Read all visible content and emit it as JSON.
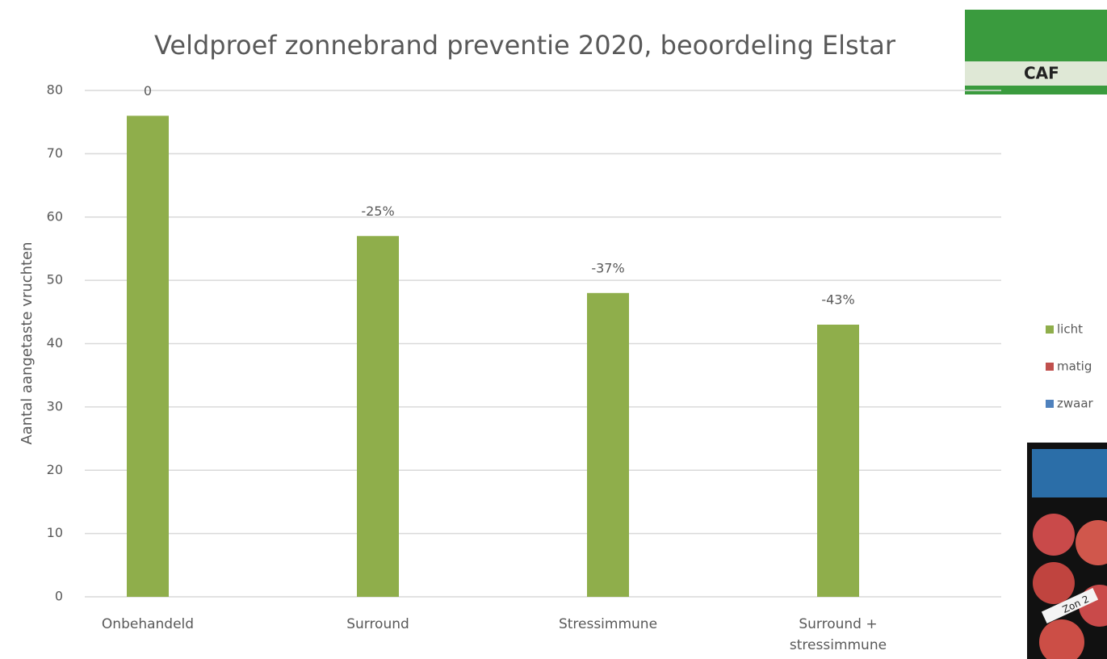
{
  "chart_data": {
    "type": "bar",
    "title": "Veldproef zonnebrand preventie 2020, beoordeling Elstar",
    "y_label": "Aantal aangetaste vruchten",
    "categories": [
      "Onbehandeld",
      "Surround",
      "Stressimmune",
      "Surround + stressimmune"
    ],
    "series": [
      {
        "name": "licht",
        "color": "#8fae4b",
        "values": [
          76,
          57,
          48,
          43
        ]
      },
      {
        "name": "matig",
        "color": "#c0504d",
        "values": [
          0,
          0,
          0,
          0
        ]
      },
      {
        "name": "zwaar",
        "color": "#4f81bd",
        "values": [
          0,
          0,
          0,
          0
        ]
      }
    ],
    "bar_annotations": [
      "0",
      "-25%",
      "-37%",
      "-43%"
    ],
    "ylim": [
      0,
      80
    ],
    "yticks": [
      0,
      10,
      20,
      30,
      40,
      50,
      60,
      70,
      80
    ],
    "grid": true,
    "stacked": true,
    "legend": "right"
  },
  "logo": {
    "text": "CAF"
  },
  "photo": {
    "label": "Zon 2"
  }
}
